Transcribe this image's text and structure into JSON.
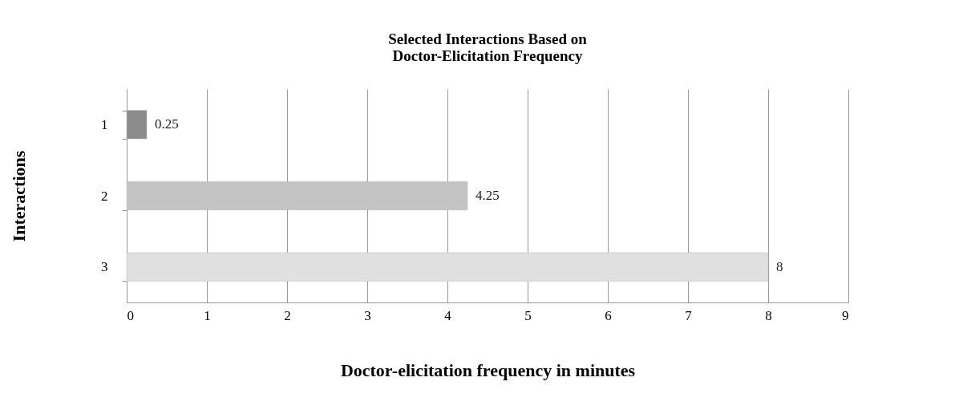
{
  "chart_data": {
    "type": "bar",
    "orientation": "horizontal",
    "title": "Selected Interactions Based on\nDoctor-Elicitation Frequency",
    "xlabel": "Doctor-elicitation frequency in minutes",
    "ylabel": "Interactions",
    "categories": [
      "1",
      "2",
      "3"
    ],
    "values": [
      0.25,
      4.25,
      8
    ],
    "colors": [
      "#8c8c8c",
      "#c4c4c4",
      "#e0e0e0"
    ],
    "xlim": [
      0,
      9
    ],
    "xticks": [
      0,
      1,
      2,
      3,
      4,
      5,
      6,
      7,
      8,
      9
    ],
    "grid": "x",
    "data_labels": true
  }
}
